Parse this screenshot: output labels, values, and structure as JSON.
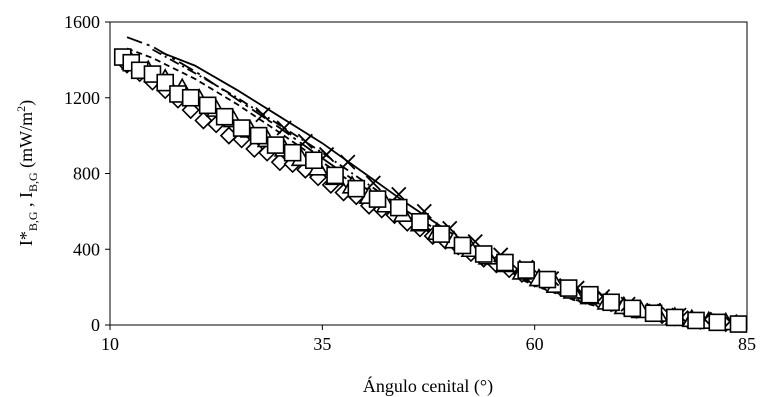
{
  "chart_data": {
    "type": "scatter",
    "title": "",
    "xlabel": "Ángulo cenital (°)",
    "ylabel_parts": {
      "main1": "I*",
      "sub1": "B,G",
      "sep": " , I",
      "sub2": "B,G",
      "unit_open": " (mW/m",
      "sup": "2",
      "unit_close": ")"
    },
    "xlim": [
      10,
      85
    ],
    "ylim": [
      0,
      1600
    ],
    "xticks": [
      10,
      35,
      60,
      85
    ],
    "yticks": [
      0,
      400,
      800,
      1200,
      1600
    ],
    "grid": false,
    "legend": "none",
    "series": [
      {
        "marker": "diamond",
        "x": [
          12,
          13.5,
          15,
          16.5,
          18,
          19.5,
          21,
          22.5,
          24,
          25.5,
          27,
          28.5,
          30,
          31.5,
          33,
          34.5,
          36,
          37.5,
          39,
          40.5,
          42,
          43.5,
          45,
          46.5,
          48,
          49.5,
          51,
          52.5,
          54,
          55.5,
          57,
          58.5,
          60,
          61.5,
          63,
          64.5,
          66,
          67.5,
          69,
          70.5,
          72,
          73.5,
          75,
          76.5,
          78,
          79.5,
          81,
          82.5
        ],
        "y": [
          1375,
          1330,
          1285,
          1240,
          1190,
          1135,
          1080,
          1060,
          1000,
          980,
          930,
          910,
          860,
          850,
          820,
          780,
          740,
          700,
          680,
          630,
          610,
          580,
          540,
          510,
          470,
          445,
          415,
          380,
          350,
          320,
          295,
          270,
          245,
          220,
          200,
          175,
          155,
          135,
          115,
          98,
          80,
          66,
          52,
          40,
          30,
          22,
          15,
          10
        ]
      },
      {
        "marker": "triangle",
        "x": [
          12.5,
          14.5,
          16.5,
          18.5,
          20.5,
          22.5,
          24.5,
          26.5,
          28.5,
          30.5,
          32.5,
          34.5,
          36.5,
          38.5,
          40.5,
          42.5,
          44.5,
          46.5,
          48.5,
          50.5,
          52.5,
          54.5,
          56.5,
          58.5,
          60.5,
          62.5,
          64.5,
          66.5,
          68.5,
          70.5,
          72.5,
          74.5,
          76.5,
          78.5,
          80.5,
          82.5
        ],
        "y": [
          1390,
          1345,
          1300,
          1250,
          1195,
          1140,
          1085,
          1030,
          980,
          930,
          880,
          830,
          780,
          735,
          680,
          635,
          585,
          535,
          490,
          445,
          400,
          360,
          320,
          280,
          245,
          210,
          180,
          150,
          122,
          98,
          77,
          58,
          42,
          30,
          20,
          13
        ]
      },
      {
        "marker": "x",
        "x": [
          28,
          30.5,
          33,
          35.5,
          38,
          41,
          44,
          47,
          50,
          53,
          56,
          59,
          62,
          65,
          68,
          71,
          74,
          77,
          80,
          83
        ],
        "y": [
          1110,
          1040,
          970,
          900,
          860,
          750,
          690,
          600,
          510,
          440,
          370,
          305,
          245,
          195,
          150,
          110,
          78,
          52,
          30,
          18
        ]
      },
      {
        "marker": "square",
        "x": [
          11.5,
          12.5,
          13.5,
          15,
          16.5,
          18,
          19.5,
          21.5,
          23.5,
          25.5,
          27.5,
          29.5,
          31.5,
          34,
          36.5,
          39,
          41.5,
          44,
          46.5,
          49,
          51.5,
          54,
          56.5,
          59,
          61.5,
          64,
          66.5,
          69,
          71.5,
          74,
          76.5,
          79,
          81.5,
          84
        ],
        "y": [
          1415,
          1385,
          1345,
          1325,
          1280,
          1220,
          1200,
          1160,
          1100,
          1040,
          1000,
          950,
          910,
          870,
          790,
          720,
          665,
          620,
          545,
          480,
          420,
          375,
          330,
          290,
          240,
          195,
          160,
          120,
          88,
          62,
          40,
          24,
          14,
          5
        ]
      },
      {
        "marker": "none",
        "line": "solid",
        "x": [
          16,
          20,
          25,
          30,
          35,
          40,
          45,
          50,
          55,
          60,
          65,
          70,
          75,
          80,
          85
        ],
        "y": [
          1440,
          1370,
          1240,
          1100,
          960,
          800,
          640,
          490,
          360,
          240,
          150,
          80,
          35,
          12,
          3
        ]
      },
      {
        "marker": "none",
        "line": "dashdot",
        "x": [
          15,
          20,
          25,
          30,
          35,
          40,
          45,
          50,
          55,
          60,
          65,
          70,
          75,
          80,
          85
        ],
        "y": [
          1455,
          1330,
          1200,
          1055,
          910,
          755,
          600,
          460,
          335,
          225,
          138,
          74,
          32,
          11,
          3
        ]
      },
      {
        "marker": "none",
        "line": "dashdot-long",
        "x": [
          12,
          15,
          20,
          25,
          30,
          35,
          40,
          45,
          50,
          55,
          60,
          65,
          70,
          75,
          80,
          85
        ],
        "y": [
          1520,
          1470,
          1340,
          1190,
          1040,
          880,
          725,
          575,
          440,
          320,
          215,
          130,
          70,
          30,
          10,
          3
        ]
      },
      {
        "marker": "none",
        "line": "dashed",
        "x": [
          12,
          15,
          20,
          25,
          30,
          35,
          40,
          45,
          50,
          55,
          60,
          65,
          70,
          75,
          80,
          85
        ],
        "y": [
          1460,
          1410,
          1300,
          1165,
          1015,
          860,
          705,
          560,
          425,
          310,
          208,
          126,
          67,
          29,
          10,
          3
        ]
      }
    ]
  }
}
